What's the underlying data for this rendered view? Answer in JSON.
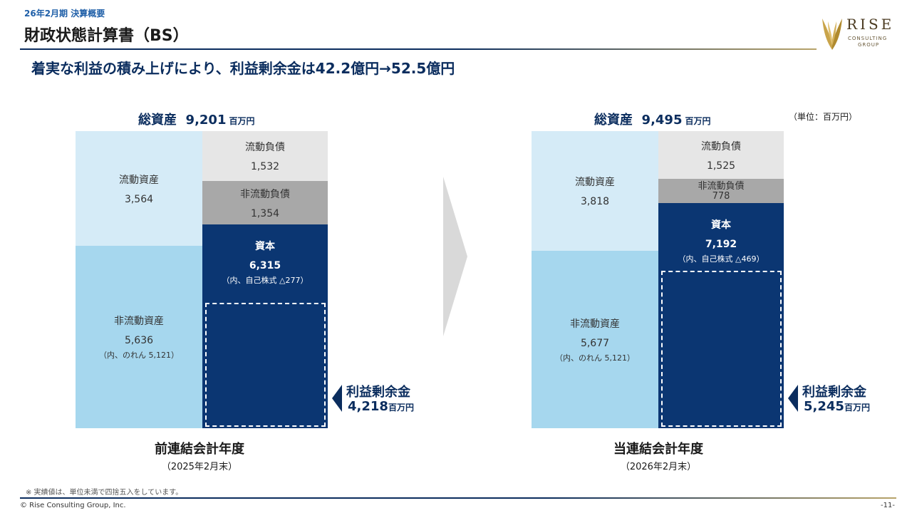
{
  "header": {
    "section_label": "26年2月期 決算概要",
    "title": "財政状態計算書（BS）",
    "subtitle": "着実な利益の積み上げにより、利益剰余金は42.2億円→52.5億円"
  },
  "logo": {
    "main": "RISE",
    "sub_line1": "CONSULTING",
    "sub_line2": "GROUP"
  },
  "unit_note": "（単位：百万円）",
  "previous": {
    "total_label": "総資産",
    "total_value": "9,201",
    "total_unit": "百万円",
    "current_assets": {
      "label": "流動資産",
      "value": "3,564"
    },
    "noncurrent_assets": {
      "label": "非流動資産",
      "value": "5,636",
      "note": "（内、のれん 5,121）"
    },
    "current_liabilities": {
      "label": "流動負債",
      "value": "1,532"
    },
    "noncurrent_liabilities": {
      "label": "非流動負債",
      "value": "1,354"
    },
    "equity": {
      "label": "資本",
      "value": "6,315",
      "note": "（内、自己株式 △277）"
    },
    "retained": {
      "label": "利益剰余金",
      "value": "4,218",
      "unit": "百万円"
    },
    "period_name": "前連結会計年度",
    "period_date": "（2025年2月末）"
  },
  "current": {
    "total_label": "総資産",
    "total_value": "9,495",
    "total_unit": "百万円",
    "current_assets": {
      "label": "流動資産",
      "value": "3,818"
    },
    "noncurrent_assets": {
      "label": "非流動資産",
      "value": "5,677",
      "note": "（内、のれん 5,121）"
    },
    "current_liabilities": {
      "label": "流動負債",
      "value": "1,525"
    },
    "noncurrent_liabilities": {
      "label": "非流動負債",
      "value": "778"
    },
    "equity": {
      "label": "資本",
      "value": "7,192",
      "note": "（内、自己株式 △469）"
    },
    "retained": {
      "label": "利益剰余金",
      "value": "5,245",
      "unit": "百万円"
    },
    "period_name": "当連結会計年度",
    "period_date": "（2026年2月末）"
  },
  "colors": {
    "current_assets": "#d5ebf7",
    "noncurrent_assets": "#a6d7ee",
    "current_liabilities": "#e6e6e6",
    "noncurrent_liabilities": "#a8a8a8",
    "equity": "#0b3672",
    "accent": "#0b2d5e"
  },
  "footer": {
    "footnote": "※ 実績値は、単位未満で四捨五入をしています。",
    "copyright": "© Rise Consulting Group, Inc.",
    "page": "-11-"
  }
}
